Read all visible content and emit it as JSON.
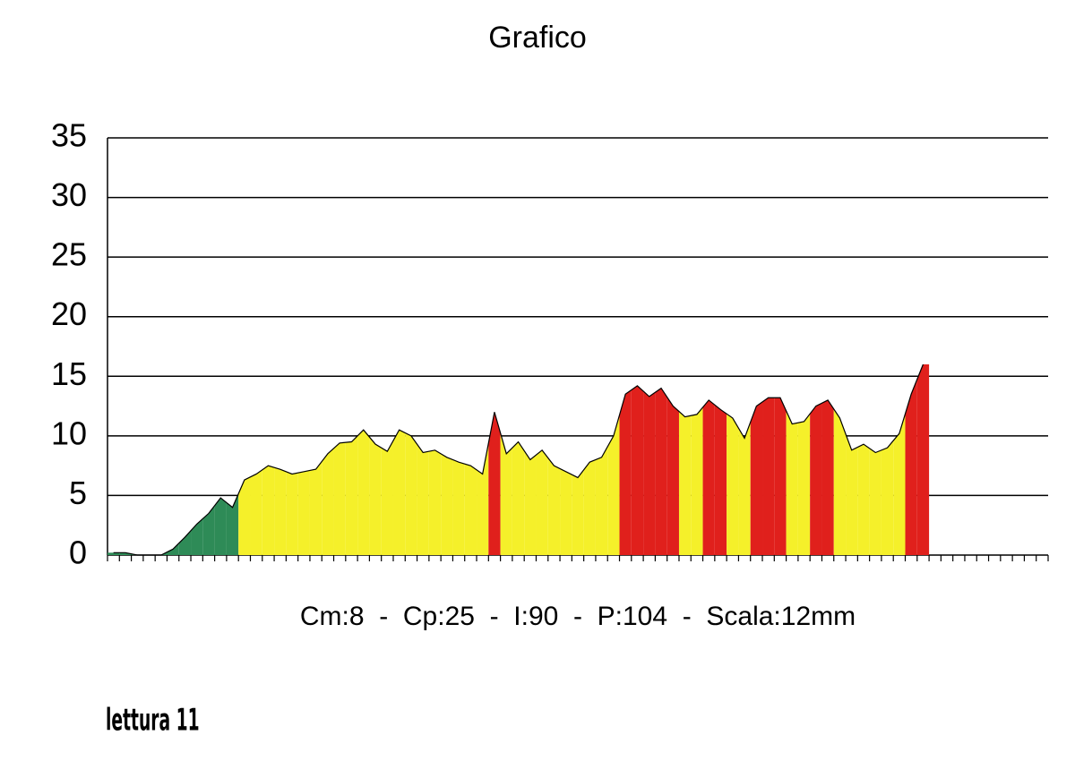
{
  "chart_data": {
    "type": "area",
    "title": "Grafico",
    "subtitle": "Cm:8  -  Cp:25  -  I:90  -  P:104  -  Scala:12mm",
    "footnote": "lettura 11",
    "categories": [
      null,
      null,
      null,
      null,
      null,
      null,
      null,
      null,
      null,
      null,
      null,
      null,
      null,
      null,
      null,
      null,
      null,
      null,
      null,
      null,
      null,
      null,
      null,
      null,
      null,
      null,
      null,
      null,
      null,
      null,
      null,
      null,
      null,
      null,
      null,
      null,
      null,
      null,
      null,
      null,
      null,
      null,
      null,
      null,
      null,
      null,
      null,
      null,
      null,
      null,
      null,
      null,
      null,
      null,
      null,
      null,
      null,
      null,
      null,
      null,
      null,
      null,
      null,
      null,
      null,
      null,
      null,
      null,
      null,
      null,
      null,
      null,
      null,
      null,
      null,
      null,
      null,
      null,
      null
    ],
    "values": [
      0.2,
      0.2,
      0,
      0,
      0,
      0.5,
      1.5,
      2.6,
      3.5,
      4.8,
      4,
      6.3,
      6.8,
      7.5,
      7.2,
      6.8,
      7,
      7.2,
      8.5,
      9.4,
      9.5,
      10.5,
      9.3,
      8.7,
      10.5,
      10,
      8.6,
      8.8,
      8.2,
      7.8,
      7.5,
      6.8,
      12,
      8.5,
      9.5,
      8,
      8.8,
      7.5,
      7,
      6.5,
      7.8,
      8.2,
      10,
      13.5,
      14.2,
      13.3,
      14,
      12.5,
      11.6,
      11.8,
      13,
      12.2,
      11.5,
      9.8,
      12.5,
      13.2,
      13.2,
      11,
      11.2,
      12.5,
      13,
      11.5,
      8.8,
      9.3,
      8.6,
      9,
      10.2,
      13.5,
      16,
      null,
      null,
      null,
      null,
      null,
      null,
      null,
      null,
      null,
      null
    ],
    "colors": [
      "#2e8b57",
      "#2e8b57",
      "#2e8b57",
      "#2e8b57",
      "#2e8b57",
      "#2e8b57",
      "#2e8b57",
      "#2e8b57",
      "#2e8b57",
      "#2e8b57",
      "#2e8b57",
      "#f5f02a",
      "#f5f02a",
      "#f5f02a",
      "#f5f02a",
      "#f5f02a",
      "#f5f02a",
      "#f5f02a",
      "#f5f02a",
      "#f5f02a",
      "#f5f02a",
      "#f5f02a",
      "#f5f02a",
      "#f5f02a",
      "#f5f02a",
      "#f5f02a",
      "#f5f02a",
      "#f5f02a",
      "#f5f02a",
      "#f5f02a",
      "#f5f02a",
      "#f5f02a",
      "#e0201c",
      "#f5f02a",
      "#f5f02a",
      "#f5f02a",
      "#f5f02a",
      "#f5f02a",
      "#f5f02a",
      "#f5f02a",
      "#f5f02a",
      "#f5f02a",
      "#f5f02a",
      "#e0201c",
      "#e0201c",
      "#e0201c",
      "#e0201c",
      "#e0201c",
      "#f5f02a",
      "#f5f02a",
      "#e0201c",
      "#e0201c",
      "#f5f02a",
      "#f5f02a",
      "#e0201c",
      "#e0201c",
      "#e0201c",
      "#f5f02a",
      "#f5f02a",
      "#e0201c",
      "#e0201c",
      "#f5f02a",
      "#f5f02a",
      "#f5f02a",
      "#f5f02a",
      "#f5f02a",
      "#f5f02a",
      "#e0201c",
      "#e0201c",
      null,
      null,
      null,
      null,
      null,
      null,
      null,
      null,
      null,
      null
    ],
    "ylim": [
      0,
      35
    ],
    "yticks": [
      0,
      5,
      10,
      15,
      20,
      25,
      30,
      35
    ],
    "grid": true
  }
}
